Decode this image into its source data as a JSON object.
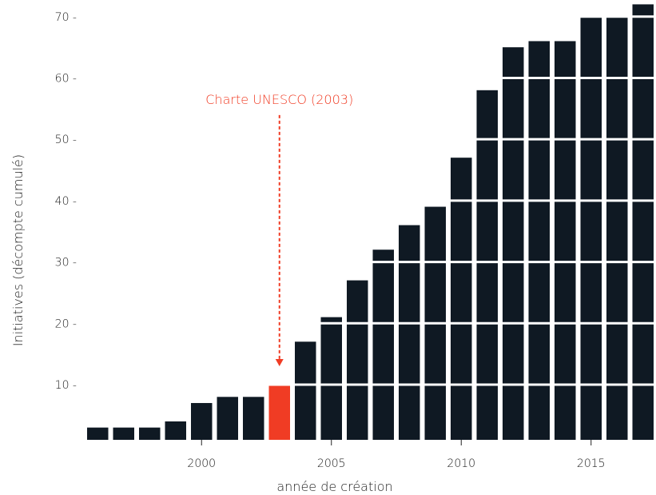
{
  "chart_data": {
    "type": "bar",
    "xlabel": "année de création",
    "ylabel": "Initiatives (décompte cumulé)",
    "x": [
      1996,
      1997,
      1998,
      1999,
      2000,
      2001,
      2002,
      2003,
      2004,
      2005,
      2006,
      2007,
      2008,
      2009,
      2010,
      2011,
      2012,
      2013,
      2014,
      2015,
      2016,
      2017
    ],
    "values": [
      3,
      3,
      3,
      4,
      7,
      8,
      8,
      10,
      17,
      21,
      27,
      32,
      36,
      39,
      47,
      58,
      65,
      66,
      66,
      70,
      70,
      72
    ],
    "highlight_year": 2003,
    "xticks": [
      2000,
      2005,
      2010,
      2015
    ],
    "xlim": [
      1995.5,
      2017.5
    ],
    "yticks": [
      10,
      20,
      30,
      40,
      50,
      60,
      70
    ],
    "ylim": [
      1,
      72
    ],
    "grid": false,
    "colors": {
      "bar": "#0f1923",
      "highlight": "#f03c24",
      "separator": "#ffffff"
    },
    "annotation": {
      "text": "Charte UNESCO (2003)",
      "year": 2003,
      "value_top": 55,
      "value_bottom": 13
    }
  }
}
